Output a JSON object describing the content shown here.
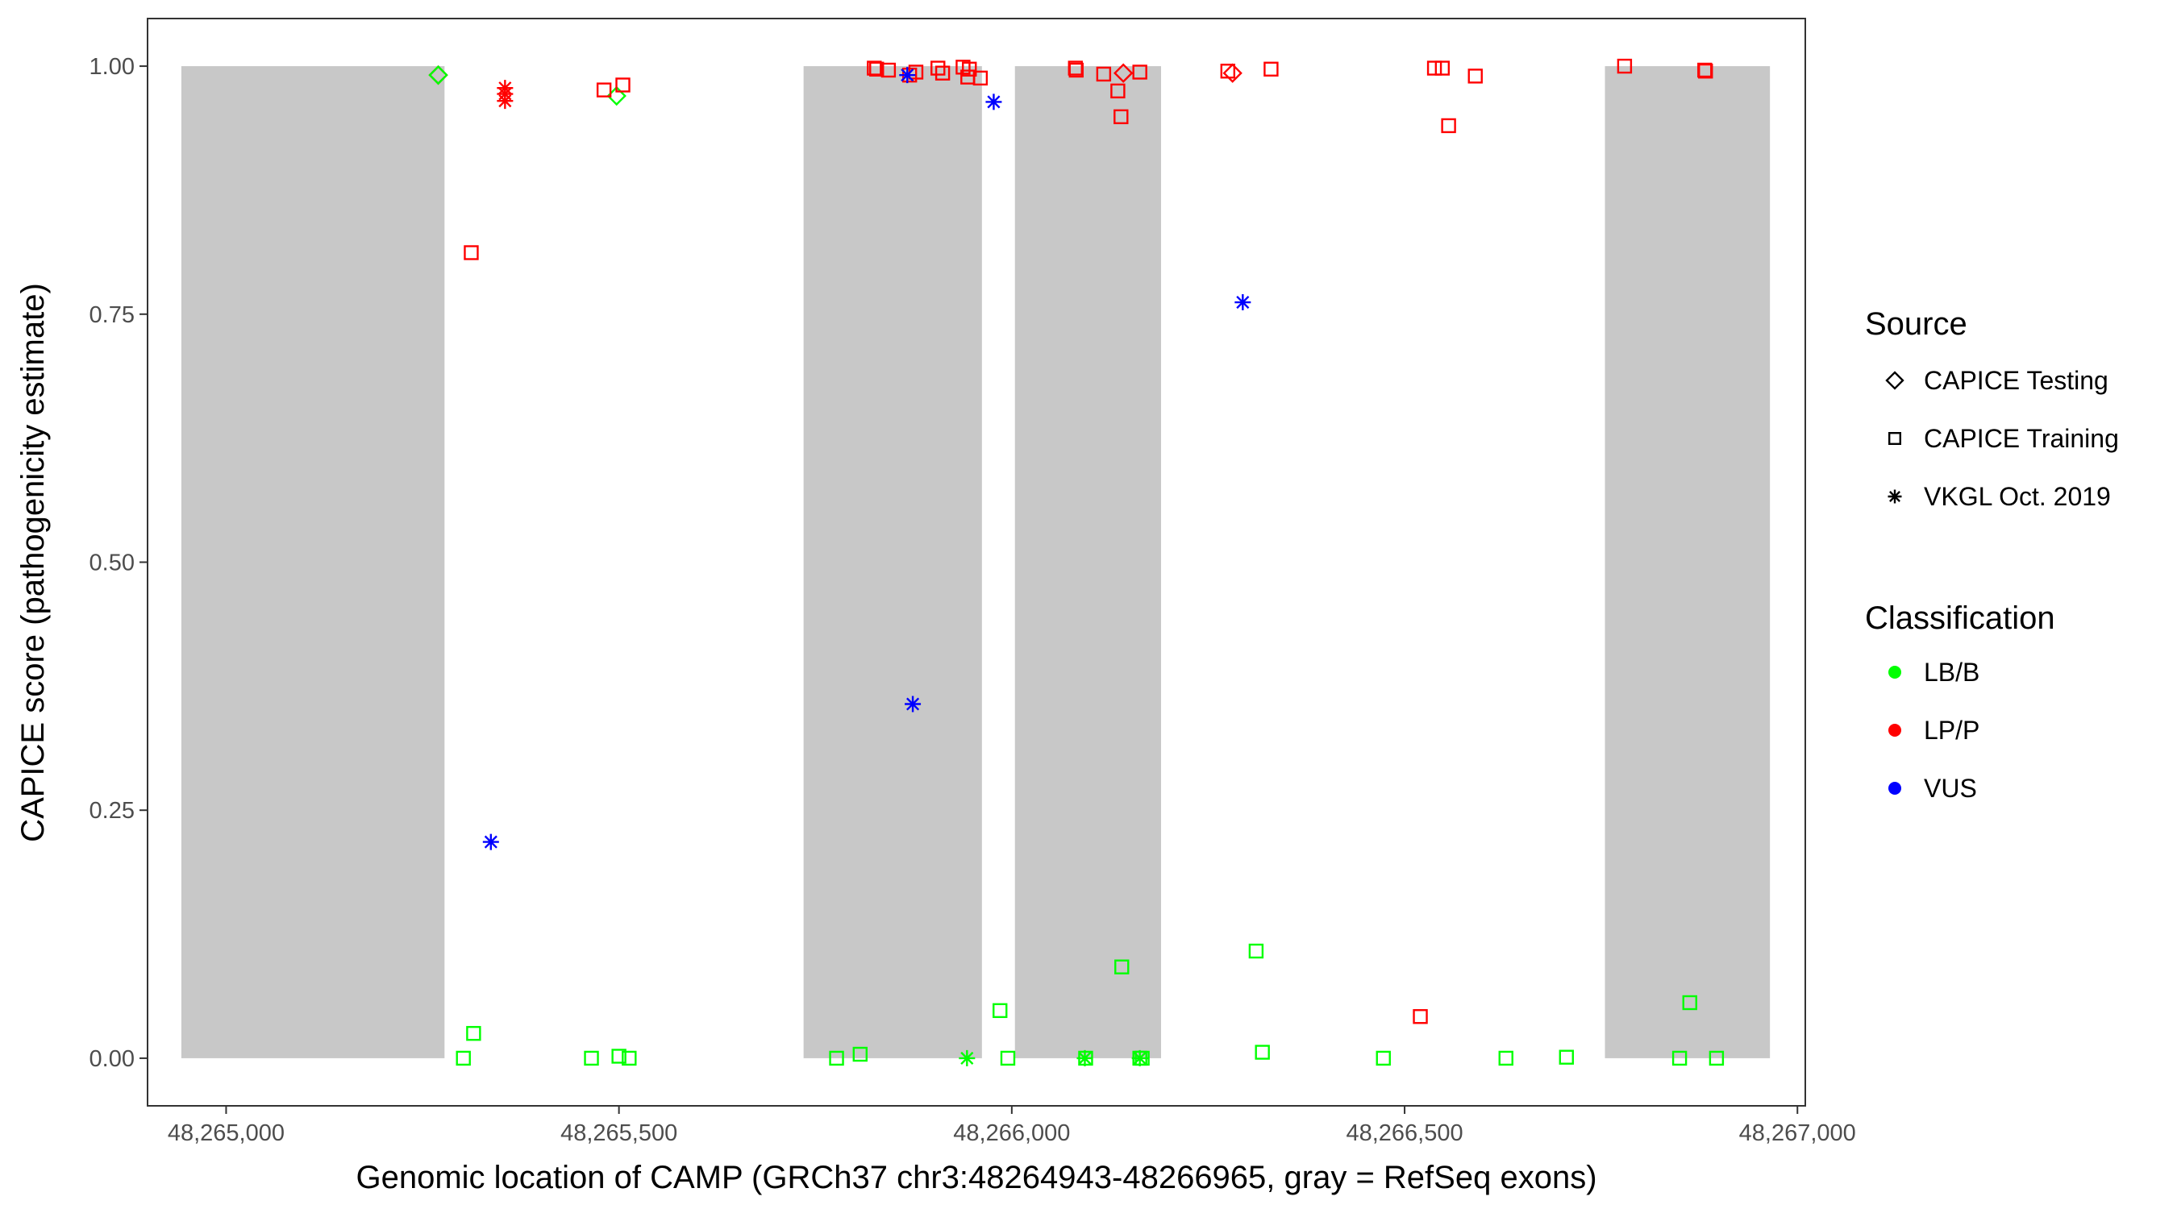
{
  "chart_data": {
    "type": "scatter",
    "title": "",
    "xlabel": "Genomic location of CAMP (GRCh37 chr3:48264943-48266965, gray = RefSeq exons)",
    "ylabel": "CAPICE score (pathogenicity estimate)",
    "xlim": [
      48264900,
      48267010
    ],
    "ylim": [
      -0.048,
      1.048
    ],
    "x_ticks": [
      48265000,
      48265500,
      48266000,
      48266500,
      48267000
    ],
    "x_tick_labels": [
      "48,265,000",
      "48,265,500",
      "48,266,000",
      "48,266,500",
      "48,267,000"
    ],
    "y_ticks": [
      0,
      0.25,
      0.5,
      0.75,
      1.0
    ],
    "y_tick_labels": [
      "0.00",
      "0.25",
      "0.50",
      "0.75",
      "1.00"
    ],
    "grid": false,
    "exons": [
      {
        "start": 48264943,
        "end": 48265278
      },
      {
        "start": 48265735,
        "end": 48265962
      },
      {
        "start": 48266004,
        "end": 48266190
      },
      {
        "start": 48266755,
        "end": 48266965
      }
    ],
    "colors": {
      "LB/B": "#00ff00",
      "LP/P": "#ff0000",
      "VUS": "#0000ff",
      "exon": "#c8c8c8"
    },
    "legend": {
      "placement": "right",
      "source_title": "Source",
      "source_items": [
        {
          "label": "CAPICE Testing",
          "shape": "diamond"
        },
        {
          "label": "CAPICE Training",
          "shape": "square"
        },
        {
          "label": "VKGL Oct. 2019",
          "shape": "asterisk"
        }
      ],
      "class_title": "Classification",
      "class_items": [
        {
          "label": "LB/B",
          "color": "#00ff00"
        },
        {
          "label": "LP/P",
          "color": "#ff0000"
        },
        {
          "label": "VUS",
          "color": "#0000ff"
        }
      ]
    },
    "series": [
      {
        "name": "CAPICE Testing",
        "shape": "diamond",
        "points": [
          {
            "x": 48265270,
            "y": 0.991,
            "class": "LP/P"
          },
          {
            "x": 48265270,
            "y": 0.991,
            "class": "LB/B"
          },
          {
            "x": 48265497,
            "y": 0.97,
            "class": "LB/B"
          },
          {
            "x": 48266142,
            "y": 0.993,
            "class": "LP/P"
          },
          {
            "x": 48266281,
            "y": 0.993,
            "class": "LP/P"
          }
        ]
      },
      {
        "name": "CAPICE Training",
        "shape": "square",
        "points": [
          {
            "x": 48265312,
            "y": 0.812,
            "class": "LP/P"
          },
          {
            "x": 48265481,
            "y": 0.976,
            "class": "LP/P"
          },
          {
            "x": 48265505,
            "y": 0.981,
            "class": "LP/P"
          },
          {
            "x": 48265825,
            "y": 0.998,
            "class": "LP/P"
          },
          {
            "x": 48265828,
            "y": 0.997,
            "class": "LP/P"
          },
          {
            "x": 48265843,
            "y": 0.996,
            "class": "LP/P"
          },
          {
            "x": 48265870,
            "y": 0.991,
            "class": "LP/P"
          },
          {
            "x": 48265878,
            "y": 0.994,
            "class": "LP/P"
          },
          {
            "x": 48265906,
            "y": 0.998,
            "class": "LP/P"
          },
          {
            "x": 48265912,
            "y": 0.993,
            "class": "LP/P"
          },
          {
            "x": 48265938,
            "y": 0.999,
            "class": "LP/P"
          },
          {
            "x": 48265946,
            "y": 0.997,
            "class": "LP/P"
          },
          {
            "x": 48265944,
            "y": 0.989,
            "class": "LP/P"
          },
          {
            "x": 48265960,
            "y": 0.988,
            "class": "LP/P"
          },
          {
            "x": 48266081,
            "y": 0.998,
            "class": "LP/P"
          },
          {
            "x": 48266082,
            "y": 0.996,
            "class": "LP/P"
          },
          {
            "x": 48266117,
            "y": 0.992,
            "class": "LP/P"
          },
          {
            "x": 48266135,
            "y": 0.975,
            "class": "LP/P"
          },
          {
            "x": 48266139,
            "y": 0.949,
            "class": "LP/P"
          },
          {
            "x": 48266163,
            "y": 0.994,
            "class": "LP/P"
          },
          {
            "x": 48266275,
            "y": 0.995,
            "class": "LP/P"
          },
          {
            "x": 48266330,
            "y": 0.997,
            "class": "LP/P"
          },
          {
            "x": 48266538,
            "y": 0.998,
            "class": "LP/P"
          },
          {
            "x": 48266548,
            "y": 0.998,
            "class": "LP/P"
          },
          {
            "x": 48266556,
            "y": 0.94,
            "class": "LP/P"
          },
          {
            "x": 48266590,
            "y": 0.99,
            "class": "LP/P"
          },
          {
            "x": 48266780,
            "y": 1.0,
            "class": "LP/P"
          },
          {
            "x": 48266882,
            "y": 0.996,
            "class": "LP/P"
          },
          {
            "x": 48266883,
            "y": 0.995,
            "class": "LP/P"
          },
          {
            "x": 48266520,
            "y": 0.042,
            "class": "LP/P"
          },
          {
            "x": 48265302,
            "y": 0.0,
            "class": "LB/B"
          },
          {
            "x": 48265315,
            "y": 0.025,
            "class": "LB/B"
          },
          {
            "x": 48265465,
            "y": 0.0,
            "class": "LB/B"
          },
          {
            "x": 48265500,
            "y": 0.002,
            "class": "LB/B"
          },
          {
            "x": 48265513,
            "y": 0.0,
            "class": "LB/B"
          },
          {
            "x": 48265777,
            "y": 0.0,
            "class": "LB/B"
          },
          {
            "x": 48265807,
            "y": 0.004,
            "class": "LB/B"
          },
          {
            "x": 48265985,
            "y": 0.048,
            "class": "LB/B"
          },
          {
            "x": 48265995,
            "y": 0.0,
            "class": "LB/B"
          },
          {
            "x": 48266094,
            "y": 0.0,
            "class": "LB/B"
          },
          {
            "x": 48266140,
            "y": 0.092,
            "class": "LB/B"
          },
          {
            "x": 48266163,
            "y": 0.0,
            "class": "LB/B"
          },
          {
            "x": 48266166,
            "y": 0.0,
            "class": "LB/B"
          },
          {
            "x": 48266311,
            "y": 0.108,
            "class": "LB/B"
          },
          {
            "x": 48266319,
            "y": 0.006,
            "class": "LB/B"
          },
          {
            "x": 48266473,
            "y": 0.0,
            "class": "LB/B"
          },
          {
            "x": 48266629,
            "y": 0.0,
            "class": "LB/B"
          },
          {
            "x": 48266706,
            "y": 0.001,
            "class": "LB/B"
          },
          {
            "x": 48266850,
            "y": 0.0,
            "class": "LB/B"
          },
          {
            "x": 48266863,
            "y": 0.056,
            "class": "LB/B"
          },
          {
            "x": 48266897,
            "y": 0.0,
            "class": "LB/B"
          }
        ]
      },
      {
        "name": "VKGL Oct. 2019",
        "shape": "asterisk",
        "points": [
          {
            "x": 48265355,
            "y": 0.978,
            "class": "LP/P"
          },
          {
            "x": 48265355,
            "y": 0.972,
            "class": "LP/P"
          },
          {
            "x": 48265355,
            "y": 0.965,
            "class": "LP/P"
          },
          {
            "x": 48265337,
            "y": 0.218,
            "class": "VUS"
          },
          {
            "x": 48265867,
            "y": 0.991,
            "class": "VUS"
          },
          {
            "x": 48265874,
            "y": 0.357,
            "class": "VUS"
          },
          {
            "x": 48265977,
            "y": 0.964,
            "class": "VUS"
          },
          {
            "x": 48266294,
            "y": 0.762,
            "class": "VUS"
          },
          {
            "x": 48265943,
            "y": 0.0,
            "class": "LB/B"
          },
          {
            "x": 48266093,
            "y": 0.0,
            "class": "LB/B"
          },
          {
            "x": 48266163,
            "y": 0.0,
            "class": "LB/B"
          }
        ]
      }
    ]
  }
}
